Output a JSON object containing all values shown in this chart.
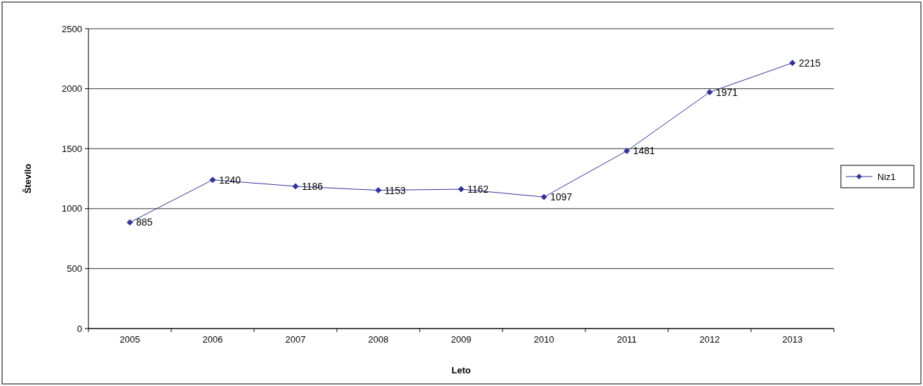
{
  "chart_data": {
    "type": "line",
    "xlabel": "Leto",
    "ylabel": "Število",
    "categories": [
      "2005",
      "2006",
      "2007",
      "2008",
      "2009",
      "2010",
      "2011",
      "2012",
      "2013"
    ],
    "series": [
      {
        "name": "Niz1",
        "color": "#333399",
        "values": [
          885,
          1240,
          1186,
          1153,
          1162,
          1097,
          1481,
          1971,
          2215
        ]
      }
    ],
    "ylim": [
      0,
      2500
    ],
    "yticks": [
      0,
      500,
      1000,
      1500,
      2000,
      2500
    ],
    "grid": "y",
    "legend": "right",
    "marker": "diamond",
    "line_style": "solid",
    "data_labels": true
  }
}
